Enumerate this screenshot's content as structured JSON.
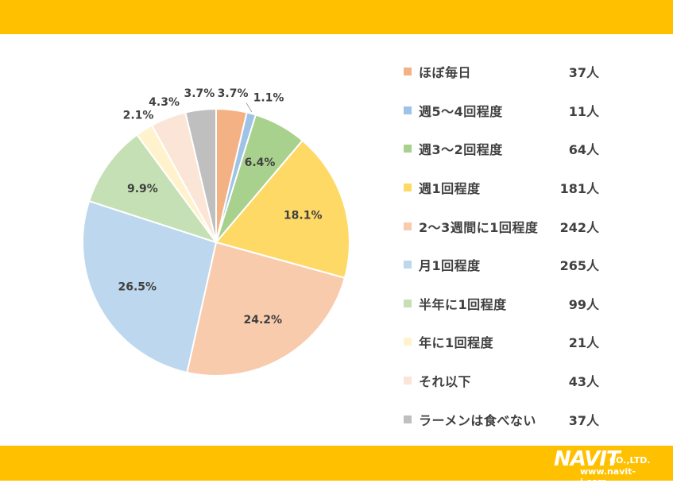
{
  "colors": {
    "band": "#FFC000",
    "label_text": "#404040"
  },
  "brand": {
    "name": "NAVIT",
    "suffix": "CO.,LTD.",
    "url": "www.navit-j.com"
  },
  "chart_data": {
    "type": "pie",
    "title": "",
    "slices": [
      {
        "name": "ほぼ毎日",
        "count": "37人",
        "value": 3.7,
        "label": "3.7%",
        "color": "#F4B183"
      },
      {
        "name": "週5～4回程度",
        "count": "11人",
        "value": 1.1,
        "label": "1.1%",
        "color": "#9DC3E6"
      },
      {
        "name": "週3～2回程度",
        "count": "64人",
        "value": 6.4,
        "label": "6.4%",
        "color": "#A9D18E"
      },
      {
        "name": "週1回程度",
        "count": "181人",
        "value": 18.1,
        "label": "18.1%",
        "color": "#FFD966"
      },
      {
        "name": "2～3週間に1回程度",
        "count": "242人",
        "value": 24.2,
        "label": "24.2%",
        "color": "#F8CBAD"
      },
      {
        "name": "月1回程度",
        "count": "265人",
        "value": 26.5,
        "label": "26.5%",
        "color": "#BDD7EE"
      },
      {
        "name": "半年に1回程度",
        "count": "99人",
        "value": 9.9,
        "label": "9.9%",
        "color": "#C5E0B4"
      },
      {
        "name": "年に1回程度",
        "count": "21人",
        "value": 2.1,
        "label": "2.1%",
        "color": "#FFF2CC"
      },
      {
        "name": "それ以下",
        "count": "43人",
        "value": 4.3,
        "label": "4.3%",
        "color": "#FBE5D6"
      },
      {
        "name": "ラーメンは食べない",
        "count": "37人",
        "value": 3.7,
        "label": "3.7%",
        "color": "#BFBFBF"
      }
    ],
    "legend_position": "right"
  }
}
